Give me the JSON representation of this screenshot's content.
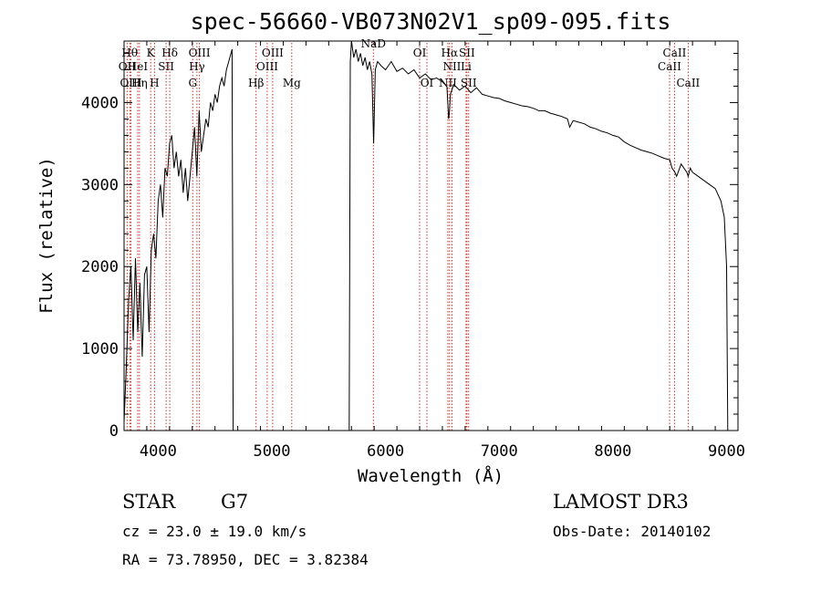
{
  "chart_data": {
    "type": "line",
    "title": "spec-56660-VB073N02V1_sp09-095.fits",
    "xlabel": "Wavelength (Å)",
    "ylabel": "Flux (relative)",
    "xlim": [
      3700,
      9100
    ],
    "ylim": [
      0,
      4750
    ],
    "xticks": [
      4000,
      5000,
      6000,
      7000,
      8000,
      9000
    ],
    "yticks": [
      0,
      1000,
      2000,
      3000,
      4000
    ],
    "gap_ranges": [
      [
        4650,
        4660
      ],
      [
        5680,
        5705
      ]
    ],
    "series": [
      {
        "name": "spectrum",
        "x": [
          3700,
          3720,
          3740,
          3760,
          3780,
          3800,
          3820,
          3840,
          3860,
          3880,
          3900,
          3920,
          3940,
          3960,
          3980,
          4000,
          4020,
          4040,
          4060,
          4080,
          4100,
          4120,
          4140,
          4160,
          4180,
          4200,
          4220,
          4240,
          4260,
          4280,
          4300,
          4320,
          4340,
          4360,
          4380,
          4400,
          4420,
          4440,
          4460,
          4480,
          4500,
          4520,
          4540,
          4560,
          4580,
          4600,
          4620,
          4640,
          4650,
          4660,
          4700,
          4800,
          4900,
          5000,
          5100,
          5200,
          5300,
          5400,
          5500,
          5600,
          5680,
          5690,
          5700,
          5705,
          5720,
          5740,
          5760,
          5780,
          5800,
          5820,
          5840,
          5860,
          5880,
          5895,
          5910,
          5930,
          5960,
          6000,
          6050,
          6100,
          6150,
          6200,
          6250,
          6300,
          6350,
          6400,
          6450,
          6500,
          6540,
          6555,
          6563,
          6570,
          6600,
          6650,
          6700,
          6750,
          6800,
          6850,
          6900,
          6950,
          7000,
          7050,
          7100,
          7150,
          7200,
          7250,
          7300,
          7350,
          7400,
          7450,
          7500,
          7550,
          7600,
          7620,
          7650,
          7700,
          7750,
          7800,
          7850,
          7900,
          7950,
          8000,
          8050,
          8100,
          8150,
          8200,
          8250,
          8300,
          8350,
          8400,
          8450,
          8500,
          8520,
          8545,
          8560,
          8600,
          8650,
          8662,
          8680,
          8700,
          8750,
          8800,
          8850,
          8900,
          8950,
          8980,
          9000,
          9010
        ],
        "values": [
          100,
          800,
          1600,
          2000,
          1100,
          2100,
          1200,
          1800,
          900,
          1900,
          2000,
          1200,
          2200,
          2400,
          2100,
          2800,
          3000,
          2600,
          3200,
          3100,
          3500,
          3600,
          3200,
          3400,
          3100,
          3300,
          2900,
          3200,
          2800,
          3100,
          3400,
          3700,
          3100,
          3900,
          3400,
          3600,
          3800,
          3700,
          4000,
          3900,
          4100,
          4000,
          4200,
          4300,
          4200,
          4400,
          4500,
          4600,
          4650,
          0,
          0,
          0,
          0,
          0,
          0,
          0,
          0,
          0,
          0,
          0,
          0,
          4500,
          4750,
          4700,
          4550,
          4650,
          4500,
          4600,
          4450,
          4550,
          4400,
          4500,
          4350,
          3500,
          4400,
          4500,
          4450,
          4400,
          4500,
          4380,
          4420,
          4350,
          4400,
          4300,
          4350,
          4280,
          4300,
          4250,
          4200,
          3800,
          3900,
          4100,
          4220,
          4150,
          4200,
          4120,
          4180,
          4100,
          4080,
          4060,
          4050,
          4020,
          4000,
          3980,
          3960,
          3950,
          3930,
          3900,
          3900,
          3870,
          3850,
          3830,
          3800,
          3700,
          3780,
          3760,
          3740,
          3700,
          3680,
          3650,
          3630,
          3600,
          3580,
          3520,
          3480,
          3450,
          3420,
          3400,
          3380,
          3350,
          3320,
          3300,
          3200,
          3150,
          3100,
          3250,
          3150,
          3100,
          3200,
          3150,
          3100,
          3050,
          3000,
          2950,
          2800,
          2600,
          2000,
          0
        ]
      }
    ],
    "lines": [
      {
        "label": "Hθ",
        "x": 3750,
        "row": 1
      },
      {
        "label": "K",
        "x": 3934,
        "row": 1
      },
      {
        "label": "Hδ",
        "x": 4102,
        "row": 1
      },
      {
        "label": "OII",
        "x": 3727,
        "row": 2
      },
      {
        "label": "HeI",
        "x": 3820,
        "row": 2
      },
      {
        "label": "SII",
        "x": 4070,
        "row": 2
      },
      {
        "label": "OIII",
        "x": 3760,
        "row": 3
      },
      {
        "label": "Hη",
        "x": 3835,
        "row": 3
      },
      {
        "label": "H",
        "x": 3968,
        "row": 3
      },
      {
        "label": "OIII",
        "x": 4363,
        "row": 1
      },
      {
        "label": "Hγ",
        "x": 4341,
        "row": 2
      },
      {
        "label": "G",
        "x": 4304,
        "row": 3
      },
      {
        "label": "Hβ",
        "x": 4861,
        "row": 3
      },
      {
        "label": "OIII",
        "x": 5007,
        "row": 1
      },
      {
        "label": "OIII",
        "x": 4959,
        "row": 2
      },
      {
        "label": "Mg",
        "x": 5175,
        "row": 3
      },
      {
        "label": "NaD",
        "x": 5893,
        "row": 0
      },
      {
        "label": "OI",
        "x": 6300,
        "row": 1
      },
      {
        "label": "OI",
        "x": 6364,
        "row": 3
      },
      {
        "label": "Hα",
        "x": 6563,
        "row": 1
      },
      {
        "label": "SII",
        "x": 6716,
        "row": 1
      },
      {
        "label": "NII",
        "x": 6584,
        "row": 2
      },
      {
        "label": "Li",
        "x": 6708,
        "row": 2
      },
      {
        "label": "NII",
        "x": 6548,
        "row": 3
      },
      {
        "label": "SII",
        "x": 6731,
        "row": 3
      },
      {
        "label": "CaII",
        "x": 8542,
        "row": 1
      },
      {
        "label": "CaII",
        "x": 8498,
        "row": 2
      },
      {
        "label": "CaII",
        "x": 8662,
        "row": 3
      }
    ]
  },
  "info": {
    "object_class": "STAR",
    "subclass": "G7",
    "survey": "LAMOST DR3",
    "redshift": "cz = 23.0 ± 19.0 km/s",
    "obs_date": "Obs-Date: 20140102",
    "coords": "RA =  73.78950, DEC =   3.82384"
  }
}
